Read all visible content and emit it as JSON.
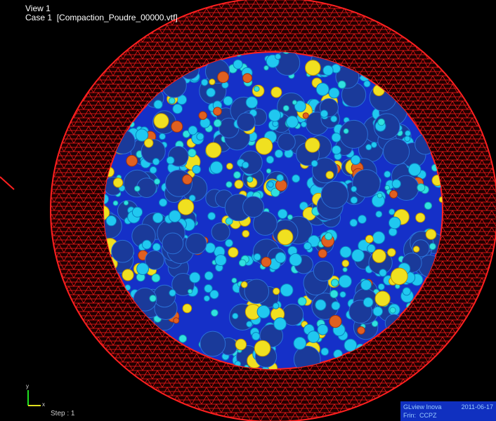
{
  "viewport": {
    "title": "View 1",
    "case": "Case 1  [Compaction_Poudre_00000.vtf]",
    "step": "Step : 1",
    "axis": {
      "x": "x",
      "y": "y"
    }
  },
  "info_box": {
    "product": "GLview Inova",
    "date": "2011-06-17",
    "frame": "Frin:  CCPZ"
  }
}
